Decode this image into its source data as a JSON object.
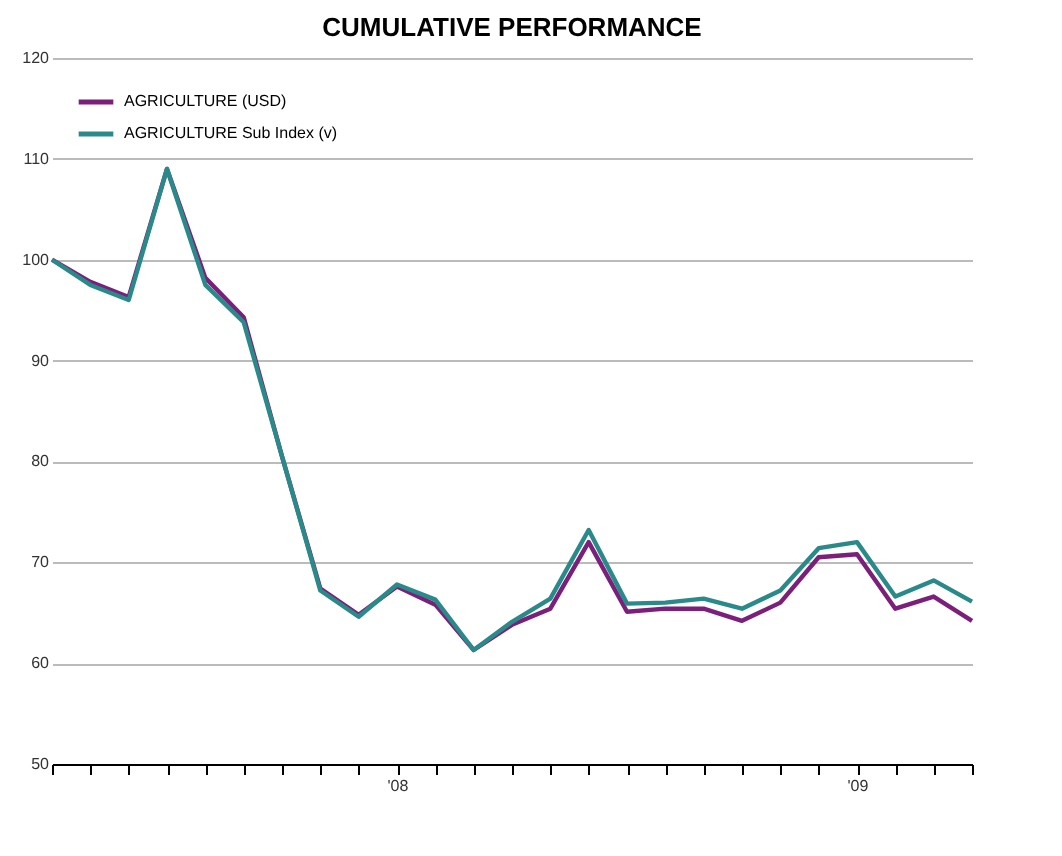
{
  "chart_data": {
    "type": "line",
    "title": "CUMULATIVE PERFORMANCE",
    "categories": [
      null,
      null,
      null,
      null,
      null,
      null,
      null,
      null,
      null,
      "'08",
      null,
      null,
      null,
      null,
      null,
      null,
      null,
      null,
      null,
      null,
      null,
      "'09",
      null,
      null,
      null
    ],
    "series": [
      {
        "name": "AGRICULTURE (USD)",
        "color": "#7b1f7b",
        "values": [
          100,
          97.8,
          96.3,
          109,
          98.2,
          94.3,
          80.5,
          67.4,
          64.8,
          67.6,
          65.8,
          61.3,
          63.8,
          65.4,
          72.0,
          65.1,
          65.4,
          65.4,
          64.2,
          66.0,
          70.5,
          70.8,
          65.4,
          66.6,
          64.2
        ]
      },
      {
        "name": "AGRICULTURE Sub Index (v)",
        "color": "#2a8a8a",
        "values": [
          100,
          97.5,
          96.0,
          109,
          97.5,
          93.8,
          80.5,
          67.2,
          64.6,
          67.8,
          66.3,
          61.3,
          64.1,
          66.4,
          73.2,
          65.9,
          66.0,
          66.4,
          65.4,
          67.2,
          71.4,
          72.0,
          66.6,
          68.2,
          66.1
        ]
      }
    ],
    "ylim": [
      50,
      120
    ],
    "yticks": [
      50,
      60,
      70,
      80,
      90,
      100,
      110,
      120
    ],
    "grid": "y",
    "legend": "top left"
  }
}
